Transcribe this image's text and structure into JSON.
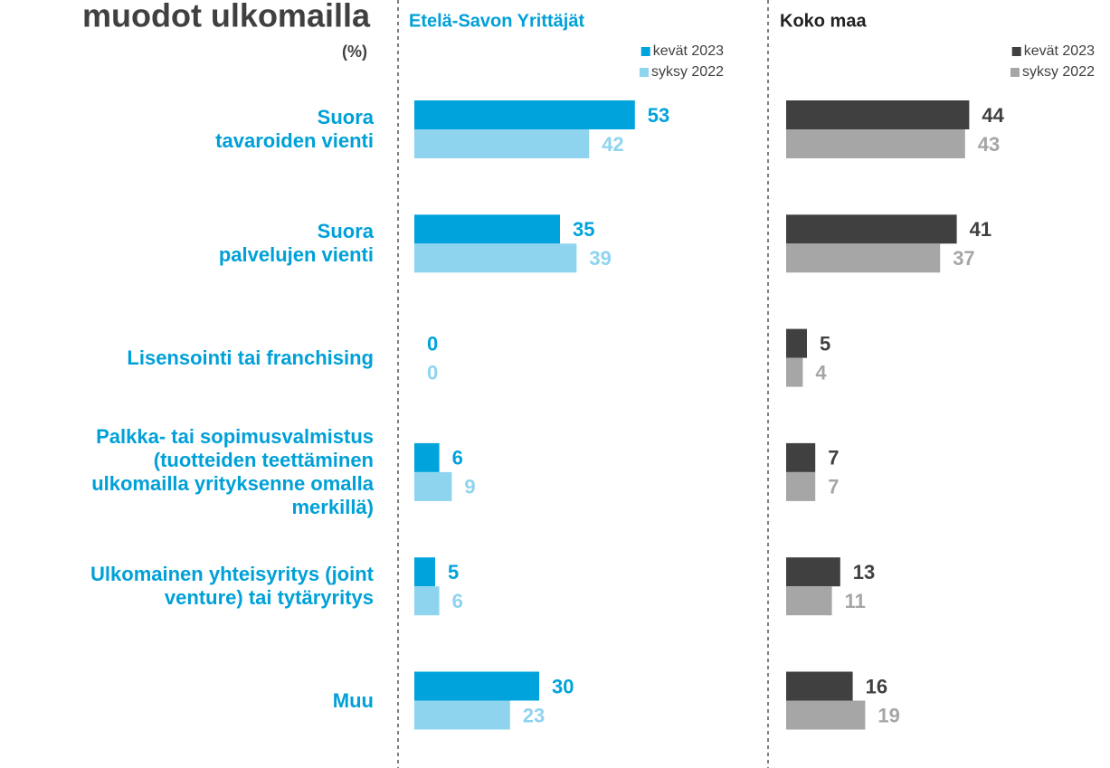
{
  "chart_data": [
    {
      "type": "bar",
      "orientation": "horizontal",
      "title": "muodot ulkomailla",
      "subtitle": "(%)",
      "panel_title": "Etelä-Savon Yrittäjät",
      "categories": [
        "Suora\ntavaroiden vienti",
        "Suora\npalvelujen vienti",
        "Lisensointi tai franchising",
        "Palkka- tai sopimusvalmistus\n(tuotteiden teettäminen\nulkomailla yrityksenne omalla\nmerkillä)",
        "Ulkomainen yhteisyritys (joint\nventure) tai tytäryritys",
        "Muu"
      ],
      "series": [
        {
          "name": "kevät 2023",
          "color": "#00a3db",
          "values": [
            53,
            35,
            0,
            6,
            5,
            30
          ]
        },
        {
          "name": "syksy 2022",
          "color": "#8ed4ef",
          "values": [
            42,
            39,
            0,
            9,
            6,
            23
          ]
        }
      ],
      "xlim": [
        0,
        100
      ],
      "legend": "upper right"
    },
    {
      "type": "bar",
      "orientation": "horizontal",
      "panel_title": "Koko maa",
      "series": [
        {
          "name": "kevät 2023",
          "color": "#404040",
          "values": [
            44,
            41,
            5,
            7,
            13,
            16
          ]
        },
        {
          "name": "syksy 2022",
          "color": "#a6a6a6",
          "values": [
            43,
            37,
            4,
            7,
            11,
            19
          ]
        }
      ],
      "xlim": [
        0,
        100
      ],
      "legend": "upper right"
    }
  ]
}
